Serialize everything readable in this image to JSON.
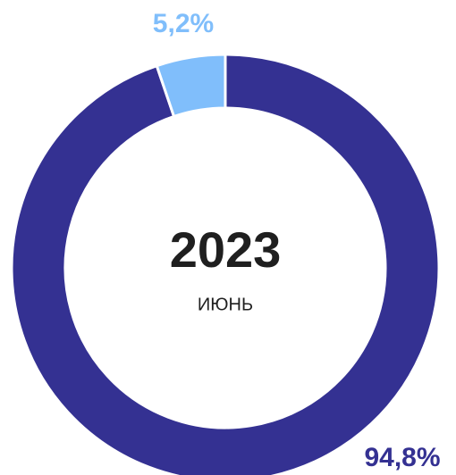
{
  "chart_data": {
    "type": "donut",
    "center_title": "2023",
    "center_subtitle": "ИЮНЬ",
    "categories": [
      null,
      null
    ],
    "values": [
      94.8,
      5.2
    ],
    "value_labels": [
      "94,8%",
      "5,2%"
    ],
    "colors": [
      "#343192",
      "#80befb"
    ]
  }
}
